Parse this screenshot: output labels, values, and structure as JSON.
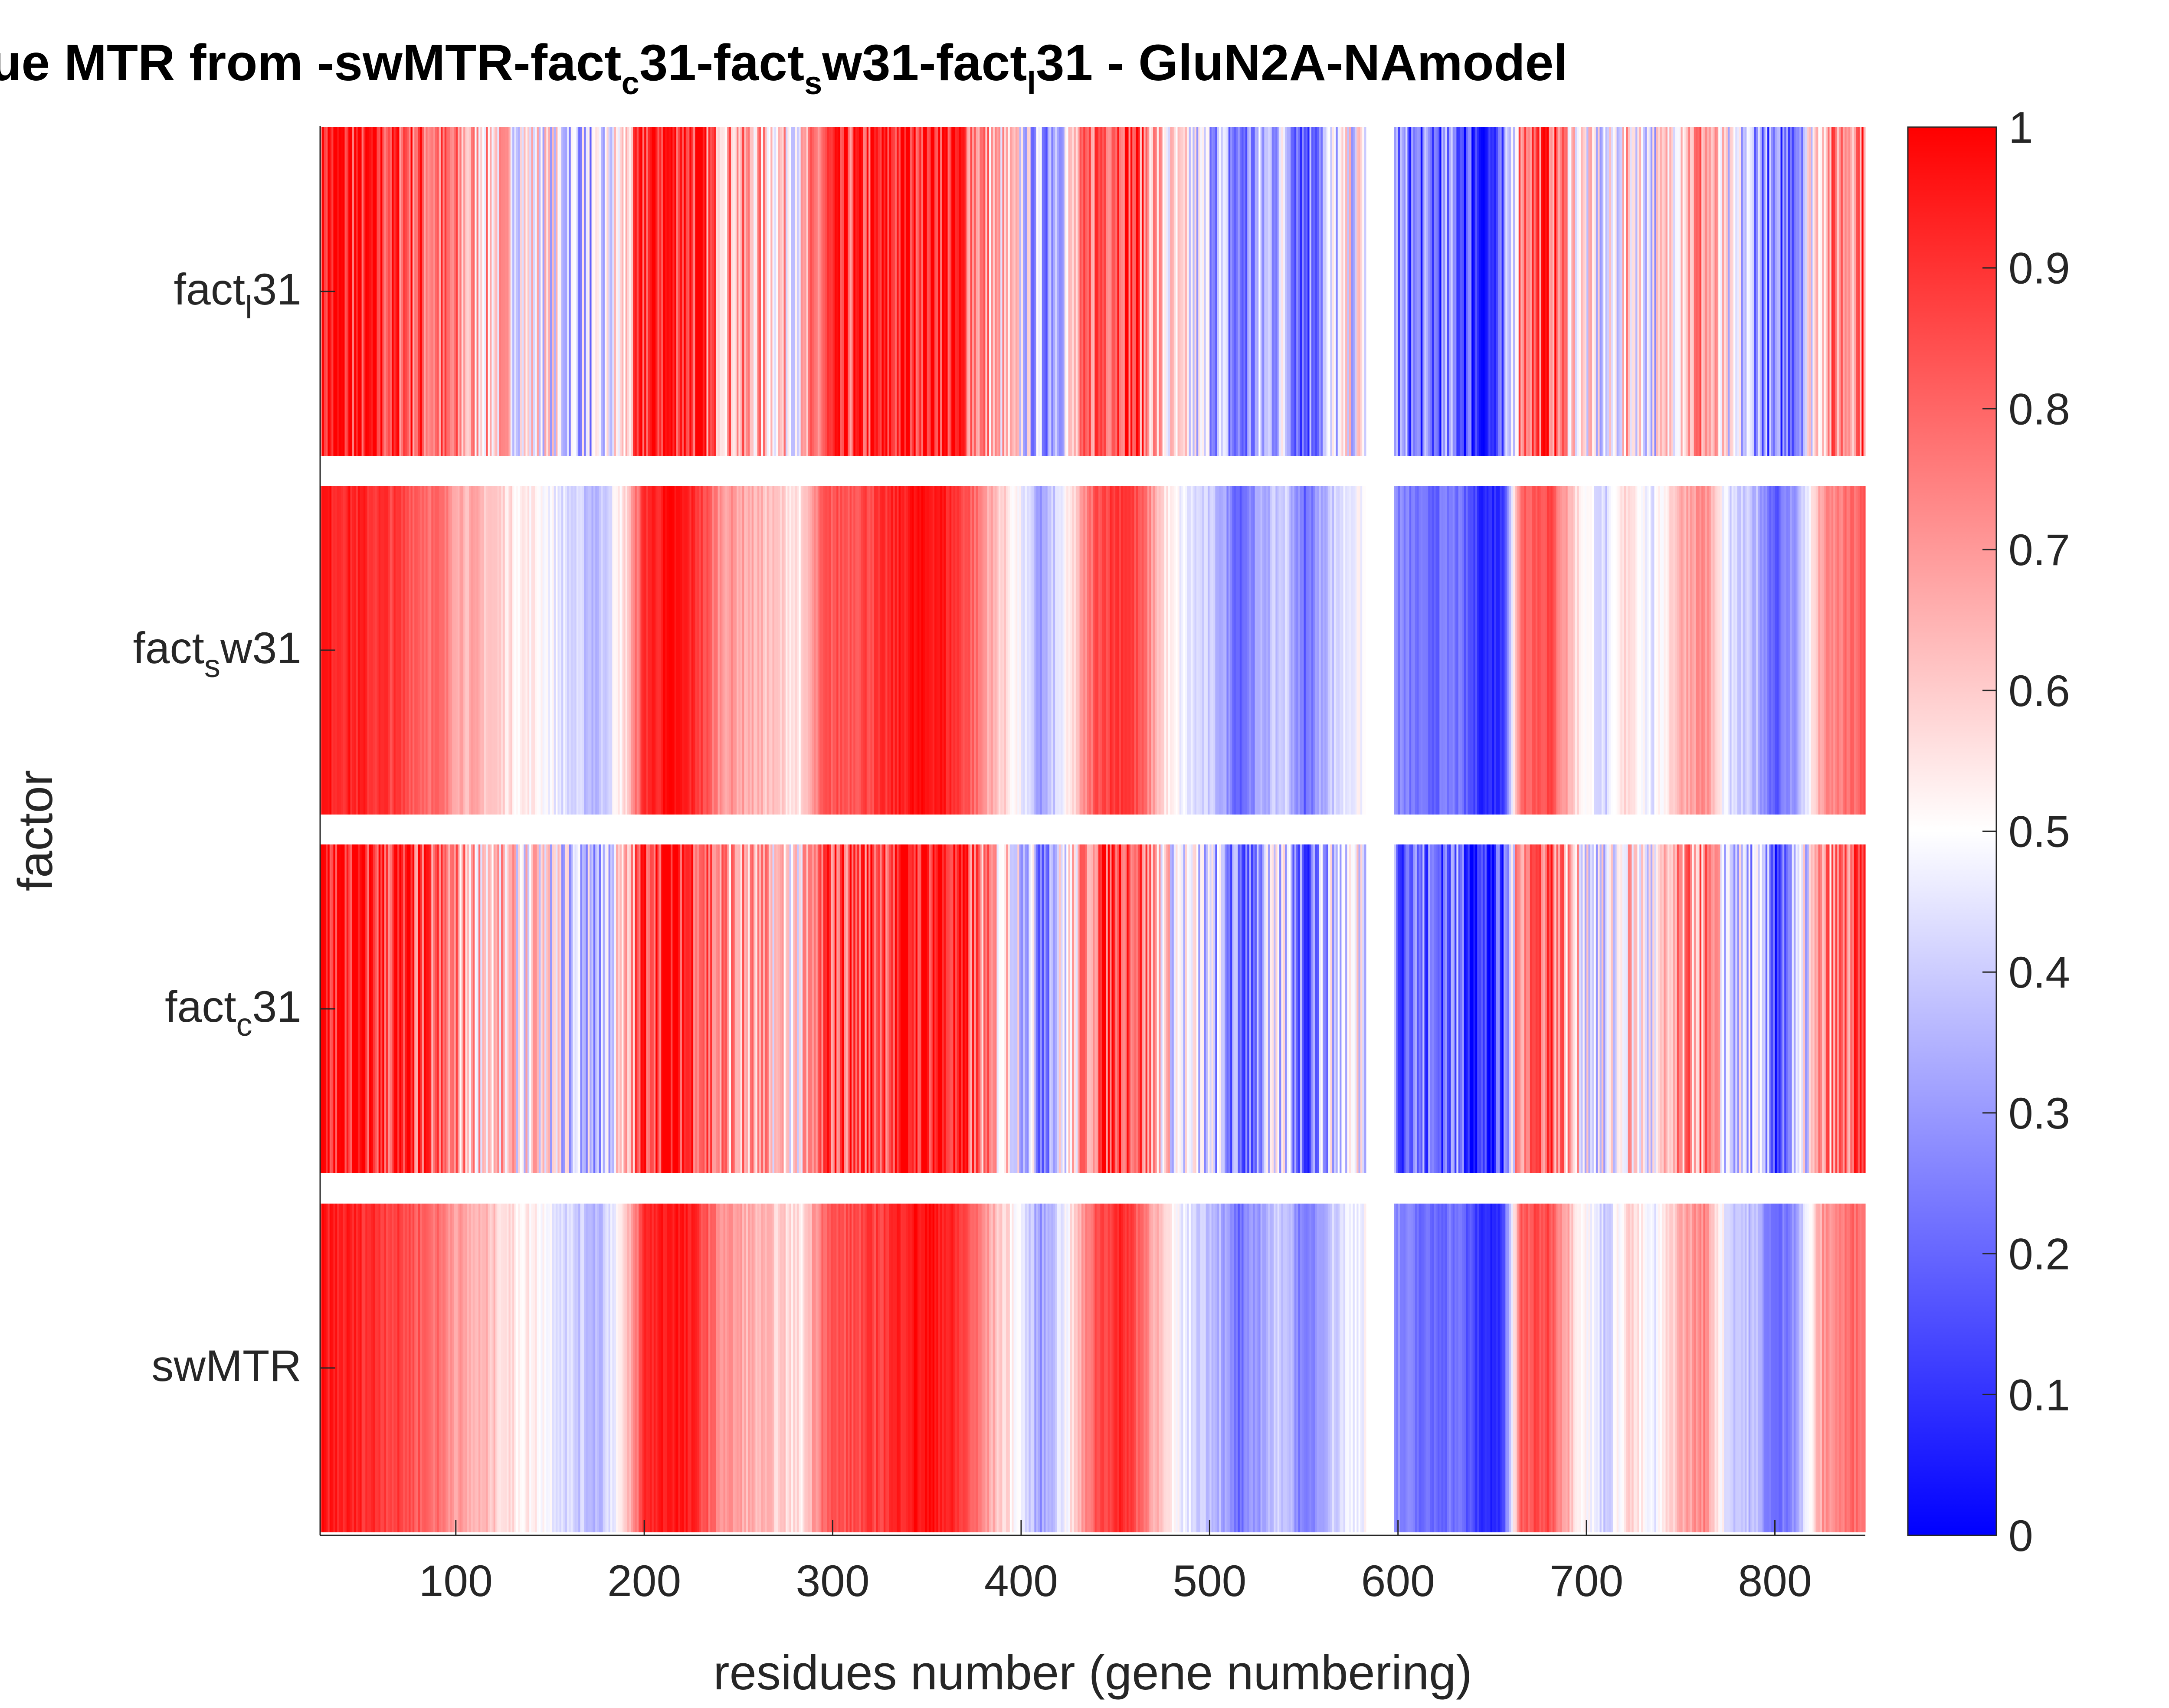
{
  "chart_data": {
    "type": "heatmap",
    "title": {
      "text": "Residue MTR from -swMTR-fact",
      "parts": [
        {
          "t": "Residue MTR from -swMTR-fact",
          "s": ""
        },
        {
          "t": "c",
          "s": "sub"
        },
        {
          "t": "31-fact",
          "s": ""
        },
        {
          "t": "s",
          "s": "sub"
        },
        {
          "t": "w31-fact",
          "s": ""
        },
        {
          "t": "l",
          "s": "sub"
        },
        {
          "t": "31 - GluN2A-NAmodel",
          "s": ""
        }
      ]
    },
    "xlabel": "residues number (gene numbering)",
    "ylabel": "factor",
    "xlim": [
      28,
      848
    ],
    "x_ticks": [
      100,
      200,
      300,
      400,
      500,
      600,
      700,
      800
    ],
    "gap_residues": [
      583,
      598
    ],
    "rows": [
      {
        "label": "fact",
        "sub": "l",
        "suffix": "31",
        "smooth": 0
      },
      {
        "label": "fact",
        "sub": "s",
        "suffix": "w31",
        "smooth": 1
      },
      {
        "label": "fact",
        "sub": "c",
        "suffix": "31",
        "smooth": 0
      },
      {
        "label": "swMTR",
        "sub": "",
        "suffix": "",
        "smooth": 1
      }
    ],
    "value_profile": [
      [
        28,
        0.95
      ],
      [
        45,
        0.93
      ],
      [
        60,
        0.9
      ],
      [
        75,
        0.85
      ],
      [
        90,
        0.78
      ],
      [
        105,
        0.66
      ],
      [
        118,
        0.62
      ],
      [
        130,
        0.55
      ],
      [
        145,
        0.52
      ],
      [
        160,
        0.42
      ],
      [
        175,
        0.36
      ],
      [
        190,
        0.58
      ],
      [
        200,
        0.92
      ],
      [
        215,
        0.97
      ],
      [
        228,
        0.9
      ],
      [
        240,
        0.72
      ],
      [
        255,
        0.66
      ],
      [
        270,
        0.6
      ],
      [
        283,
        0.55
      ],
      [
        295,
        0.82
      ],
      [
        310,
        0.85
      ],
      [
        325,
        0.88
      ],
      [
        340,
        0.96
      ],
      [
        355,
        0.97
      ],
      [
        370,
        0.86
      ],
      [
        385,
        0.64
      ],
      [
        398,
        0.5
      ],
      [
        410,
        0.3
      ],
      [
        425,
        0.52
      ],
      [
        440,
        0.86
      ],
      [
        455,
        0.92
      ],
      [
        465,
        0.78
      ],
      [
        478,
        0.52
      ],
      [
        490,
        0.44
      ],
      [
        505,
        0.36
      ],
      [
        515,
        0.2
      ],
      [
        528,
        0.34
      ],
      [
        540,
        0.42
      ],
      [
        550,
        0.2
      ],
      [
        560,
        0.36
      ],
      [
        572,
        0.46
      ],
      [
        582,
        0.5
      ],
      [
        600,
        0.26
      ],
      [
        615,
        0.2
      ],
      [
        630,
        0.24
      ],
      [
        645,
        0.08
      ],
      [
        655,
        0.1
      ],
      [
        665,
        0.82
      ],
      [
        680,
        0.86
      ],
      [
        695,
        0.56
      ],
      [
        710,
        0.4
      ],
      [
        722,
        0.6
      ],
      [
        735,
        0.44
      ],
      [
        748,
        0.65
      ],
      [
        762,
        0.74
      ],
      [
        775,
        0.42
      ],
      [
        790,
        0.36
      ],
      [
        800,
        0.18
      ],
      [
        812,
        0.34
      ],
      [
        825,
        0.7
      ],
      [
        848,
        0.82
      ]
    ],
    "colorbar": {
      "min": 0,
      "max": 1,
      "ticks": [
        "0",
        "0.1",
        "0.2",
        "0.3",
        "0.4",
        "0.5",
        "0.6",
        "0.7",
        "0.8",
        "0.9",
        "1"
      ],
      "colormap": "blue-white-red",
      "low_color": "#0000ff",
      "mid_color": "#ffffff",
      "high_color": "#ff0000"
    },
    "grid": false,
    "legend": "colorbar-right"
  }
}
